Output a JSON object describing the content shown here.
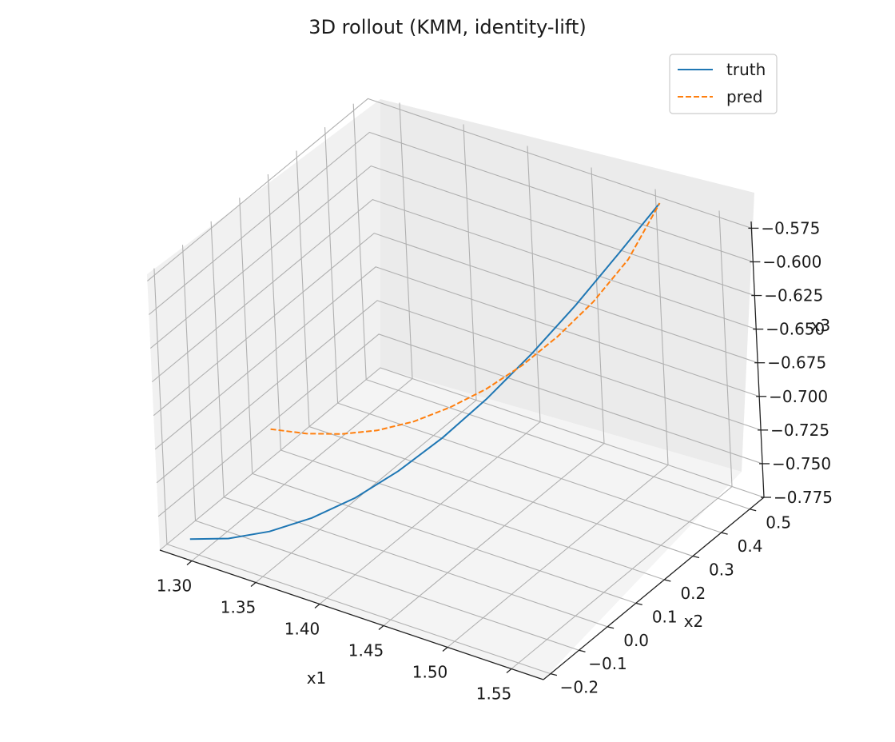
{
  "chart_data": {
    "type": "line",
    "projection": "3d",
    "title": "3D rollout (KMM, identity-lift)",
    "xlabel": "x1",
    "ylabel": "x2",
    "zlabel": "x3",
    "xlim": [
      1.275,
      1.575
    ],
    "ylim": [
      -0.225,
      0.55
    ],
    "zlim": [
      -0.775,
      -0.57
    ],
    "xticks": [
      "1.30",
      "1.35",
      "1.40",
      "1.45",
      "1.50",
      "1.55"
    ],
    "yticks": [
      "−0.2",
      "−0.1",
      "0.0",
      "0.1",
      "0.2",
      "0.3",
      "0.4",
      "0.5"
    ],
    "zticks": [
      "−0.775",
      "−0.750",
      "−0.725",
      "−0.700",
      "−0.675",
      "−0.650",
      "−0.625",
      "−0.600",
      "−0.575"
    ],
    "grid": true,
    "legend_position": "top-right",
    "series": [
      {
        "name": "truth",
        "color": "#1f77b4",
        "style": "solid",
        "points": [
          {
            "x": 1.29,
            "y": -0.185,
            "z": -0.769
          },
          {
            "x": 1.31,
            "y": -0.14,
            "z": -0.77
          },
          {
            "x": 1.33,
            "y": -0.085,
            "z": -0.768
          },
          {
            "x": 1.35,
            "y": -0.025,
            "z": -0.762
          },
          {
            "x": 1.37,
            "y": 0.04,
            "z": -0.752
          },
          {
            "x": 1.39,
            "y": 0.105,
            "z": -0.737
          },
          {
            "x": 1.41,
            "y": 0.175,
            "z": -0.718
          },
          {
            "x": 1.43,
            "y": 0.245,
            "z": -0.695
          },
          {
            "x": 1.45,
            "y": 0.32,
            "z": -0.668
          },
          {
            "x": 1.47,
            "y": 0.39,
            "z": -0.638
          },
          {
            "x": 1.49,
            "y": 0.46,
            "z": -0.605
          },
          {
            "x": 1.51,
            "y": 0.52,
            "z": -0.572
          }
        ]
      },
      {
        "name": "pred",
        "color": "#ff7f0e",
        "style": "dashed",
        "points": [
          {
            "x": 1.29,
            "y": 0.105,
            "z": -0.738
          },
          {
            "x": 1.31,
            "y": 0.14,
            "z": -0.741
          },
          {
            "x": 1.33,
            "y": 0.175,
            "z": -0.741
          },
          {
            "x": 1.35,
            "y": 0.21,
            "z": -0.738
          },
          {
            "x": 1.37,
            "y": 0.25,
            "z": -0.732
          },
          {
            "x": 1.39,
            "y": 0.29,
            "z": -0.722
          },
          {
            "x": 1.41,
            "y": 0.33,
            "z": -0.709
          },
          {
            "x": 1.43,
            "y": 0.37,
            "z": -0.692
          },
          {
            "x": 1.45,
            "y": 0.41,
            "z": -0.671
          },
          {
            "x": 1.47,
            "y": 0.45,
            "z": -0.646
          },
          {
            "x": 1.49,
            "y": 0.49,
            "z": -0.615
          },
          {
            "x": 1.51,
            "y": 0.52,
            "z": -0.572
          }
        ]
      }
    ]
  }
}
